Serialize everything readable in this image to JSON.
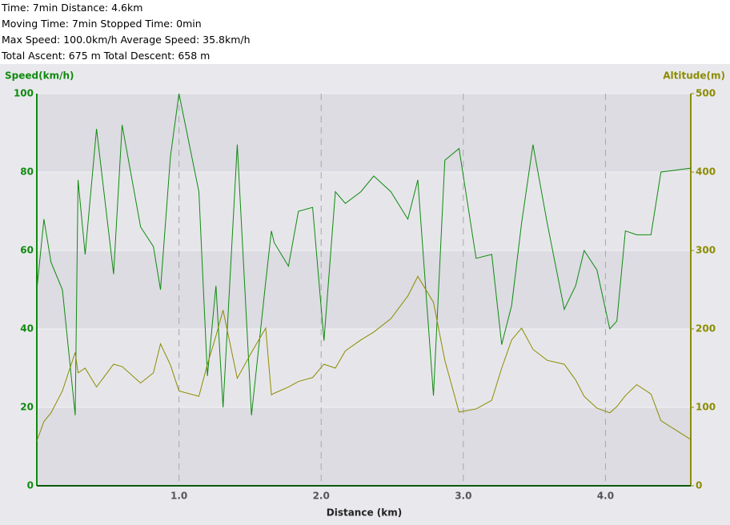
{
  "stats": [
    "Time: 7min   Distance: 4.6km",
    "Moving Time: 7min   Stopped Time: 0min",
    "Max Speed: 100.0km/h   Average Speed: 35.8km/h",
    "Total Ascent: 675 m   Total Descent: 658 m"
  ],
  "chart_data": {
    "type": "line",
    "y_label": "Speed(km/h)",
    "y2_label": "Altitude(m)",
    "x_label": "Distance (km)",
    "x": [
      0,
      0.05,
      0.1,
      0.18,
      0.27,
      0.29,
      0.34,
      0.42,
      0.54,
      0.6,
      0.73,
      0.82,
      0.87,
      0.94,
      1.0,
      1.14,
      1.2,
      1.26,
      1.31,
      1.41,
      1.51,
      1.61,
      1.65,
      1.67,
      1.77,
      1.84,
      1.94,
      2.02,
      2.1,
      2.17,
      2.28,
      2.37,
      2.49,
      2.61,
      2.68,
      2.79,
      2.87,
      2.97,
      3.09,
      3.2,
      3.27,
      3.34,
      3.41,
      3.49,
      3.59,
      3.71,
      3.79,
      3.85,
      3.94,
      4.03,
      4.08,
      4.14,
      4.22,
      4.32,
      4.39,
      4.6
    ],
    "series": [
      {
        "name": "Speed",
        "color": "#108a10",
        "values": [
          50,
          68,
          57,
          50,
          18,
          78,
          59,
          91,
          54,
          92,
          66,
          61,
          50,
          84,
          100,
          75,
          28,
          51,
          20,
          87,
          18,
          52,
          65,
          62,
          56,
          70,
          71,
          37,
          75,
          72,
          75,
          79,
          75,
          68,
          78,
          23,
          83,
          86,
          58,
          59,
          36,
          46,
          67,
          87,
          67,
          45,
          51,
          60,
          55,
          40,
          42,
          65,
          64,
          64,
          80,
          81
        ]
      },
      {
        "name": "Altitude",
        "color": "#8c8c00",
        "axis": "y2",
        "values": [
          57,
          82,
          93,
          121,
          170,
          144,
          150,
          126,
          155,
          152,
          131,
          144,
          181,
          154,
          121,
          114,
          155,
          191,
          224,
          137,
          170,
          201,
          116,
          118,
          126,
          133,
          138,
          155,
          150,
          172,
          186,
          196,
          213,
          242,
          267,
          234,
          160,
          94,
          98,
          109,
          150,
          186,
          201,
          174,
          160,
          155,
          135,
          114,
          99,
          93,
          101,
          115,
          129,
          117,
          83,
          59
        ]
      }
    ],
    "xlim": [
      0,
      4.6
    ],
    "xticks": [
      {
        "value": 1,
        "label": "1.0"
      },
      {
        "value": 2,
        "label": "2.0"
      },
      {
        "value": 3,
        "label": "3.0"
      },
      {
        "value": 4,
        "label": "4.0"
      }
    ],
    "ylim": [
      0,
      100
    ],
    "yticks": [
      0,
      20,
      40,
      60,
      80,
      100
    ],
    "y2lim": [
      0,
      500
    ],
    "y2ticks": [
      0,
      100,
      200,
      300,
      400,
      500
    ],
    "grid": true
  }
}
